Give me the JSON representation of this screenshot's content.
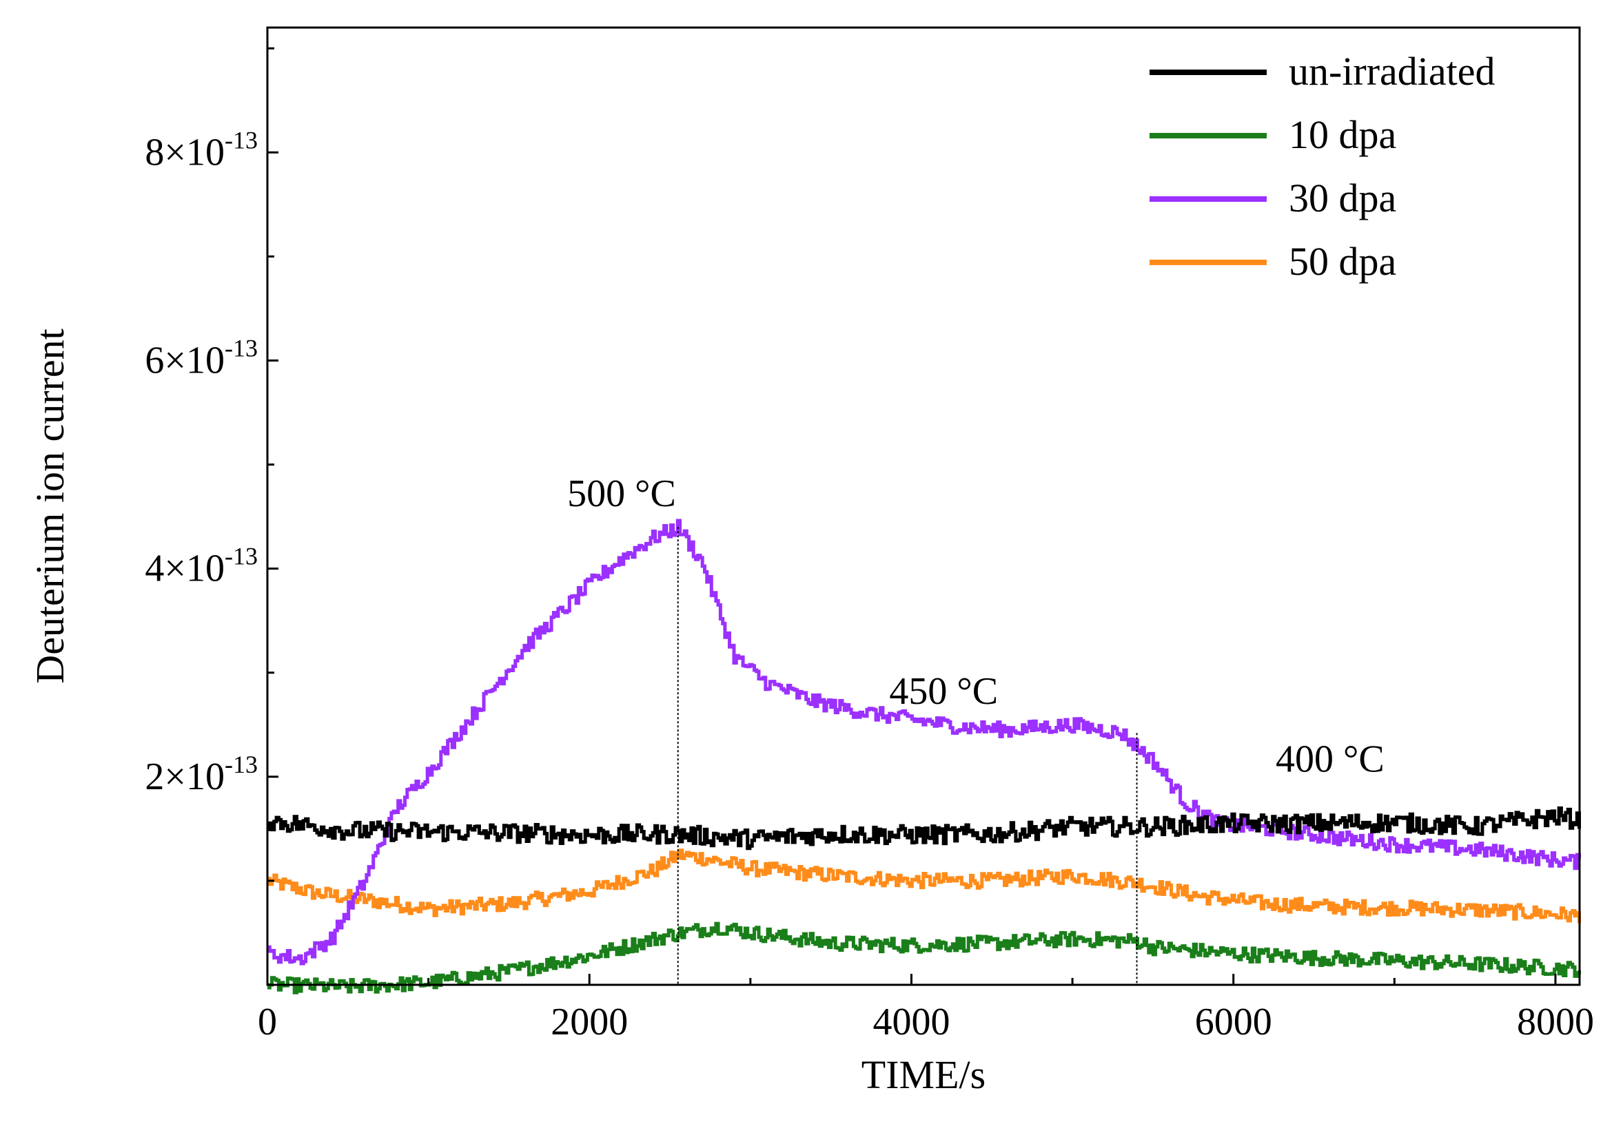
{
  "chart_data": {
    "type": "line",
    "xlabel": "TIME/s",
    "ylabel": "Deuterium ion current",
    "xlim": [
      0,
      8150
    ],
    "ylim": [
      0.0,
      9.2e-13
    ],
    "x_ticks": [
      {
        "value": 0,
        "label": "0"
      },
      {
        "value": 2000,
        "label": "2000"
      },
      {
        "value": 4000,
        "label": "4000"
      },
      {
        "value": 6000,
        "label": "6000"
      },
      {
        "value": 8000,
        "label": "8000"
      }
    ],
    "y_ticks": [
      {
        "value": 2e-13,
        "mantissa": "2",
        "times": "×",
        "base": "10",
        "exponent": "-13"
      },
      {
        "value": 4e-13,
        "mantissa": "4",
        "times": "×",
        "base": "10",
        "exponent": "-13"
      },
      {
        "value": 6e-13,
        "mantissa": "6",
        "times": "×",
        "base": "10",
        "exponent": "-13"
      },
      {
        "value": 8e-13,
        "mantissa": "8",
        "times": "×",
        "base": "10",
        "exponent": "-13"
      }
    ],
    "grid": false,
    "legend_position": "top-right",
    "series": [
      {
        "name": "un-irradiated",
        "color": "#000000",
        "x": [
          0,
          500,
          1000,
          1500,
          2000,
          2500,
          3000,
          3500,
          4000,
          4500,
          5000,
          5500,
          6000,
          6500,
          7000,
          7500,
          8000,
          8150
        ],
        "y": [
          1.58e-13,
          1.48e-13,
          1.47e-13,
          1.46e-13,
          1.44e-13,
          1.45e-13,
          1.4e-13,
          1.45e-13,
          1.44e-13,
          1.45e-13,
          1.52e-13,
          1.52e-13,
          1.55e-13,
          1.55e-13,
          1.56e-13,
          1.52e-13,
          1.62e-13,
          1.58e-13
        ]
      },
      {
        "name": "10 dpa",
        "color": "#1a7f1a",
        "x": [
          0,
          500,
          1000,
          1500,
          2000,
          2500,
          2800,
          3000,
          3500,
          4000,
          4500,
          5000,
          5400,
          5500,
          6000,
          6500,
          7000,
          7500,
          8000,
          8150
        ],
        "y": [
          0.0,
          -2e-15,
          2e-15,
          1.3e-14,
          2.8e-14,
          4.8e-14,
          5.6e-14,
          5e-14,
          4e-14,
          3.8e-14,
          4e-14,
          4.4e-14,
          4.2e-14,
          3.6e-14,
          3e-14,
          2.6e-14,
          2.3e-14,
          2e-14,
          1.6e-14,
          1.5e-14
        ]
      },
      {
        "name": "30 dpa",
        "color": "#9b30ff",
        "x": [
          0,
          200,
          400,
          600,
          800,
          1000,
          1200,
          1400,
          1600,
          1800,
          2000,
          2200,
          2400,
          2550,
          2700,
          2900,
          3100,
          3400,
          3700,
          4000,
          4300,
          4600,
          5000,
          5300,
          5500,
          5700,
          5900,
          6200,
          6600,
          7000,
          7500,
          8000,
          8150
        ],
        "y": [
          3e-14,
          2.5e-14,
          4.5e-14,
          1e-13,
          1.7e-13,
          2.05e-13,
          2.45e-13,
          2.85e-13,
          3.25e-13,
          3.55e-13,
          3.85e-13,
          4.1e-13,
          4.3e-13,
          4.4e-13,
          4.05e-13,
          3.15e-13,
          2.9e-13,
          2.72e-13,
          2.62e-13,
          2.55e-13,
          2.48e-13,
          2.45e-13,
          2.5e-13,
          2.42e-13,
          2.15e-13,
          1.75e-13,
          1.55e-13,
          1.5e-13,
          1.42e-13,
          1.35e-13,
          1.3e-13,
          1.2e-13,
          1.18e-13
        ]
      },
      {
        "name": "50 dpa",
        "color": "#ff8c1a",
        "x": [
          0,
          300,
          600,
          1000,
          1500,
          2000,
          2400,
          2550,
          2700,
          3000,
          3500,
          4000,
          4500,
          5000,
          5400,
          5800,
          6200,
          6600,
          7000,
          7500,
          8000,
          8150
        ],
        "y": [
          1e-13,
          8.8e-14,
          8.2e-14,
          7.3e-14,
          7.8e-14,
          9e-14,
          1.1e-13,
          1.25e-13,
          1.22e-13,
          1.12e-13,
          1.05e-13,
          1e-13,
          1e-13,
          1.05e-13,
          9.8e-14,
          8.5e-14,
          7.8e-14,
          7.5e-14,
          7.4e-14,
          7.2e-14,
          6.8e-14,
          6.6e-14
        ]
      }
    ],
    "annotations": [
      {
        "text": "500 °C",
        "x": 2200,
        "y": 4.6e-13
      },
      {
        "text": "450 °C",
        "x": 4200,
        "y": 2.7e-13
      },
      {
        "text": "400 °C",
        "x": 6600,
        "y": 2.05e-13
      }
    ],
    "vlines": [
      {
        "x": 2550,
        "y_from": 0.0,
        "y_to": 4.4e-13
      },
      {
        "x": 5400,
        "y_from": 0.0,
        "y_to": 2.42e-13
      }
    ]
  }
}
